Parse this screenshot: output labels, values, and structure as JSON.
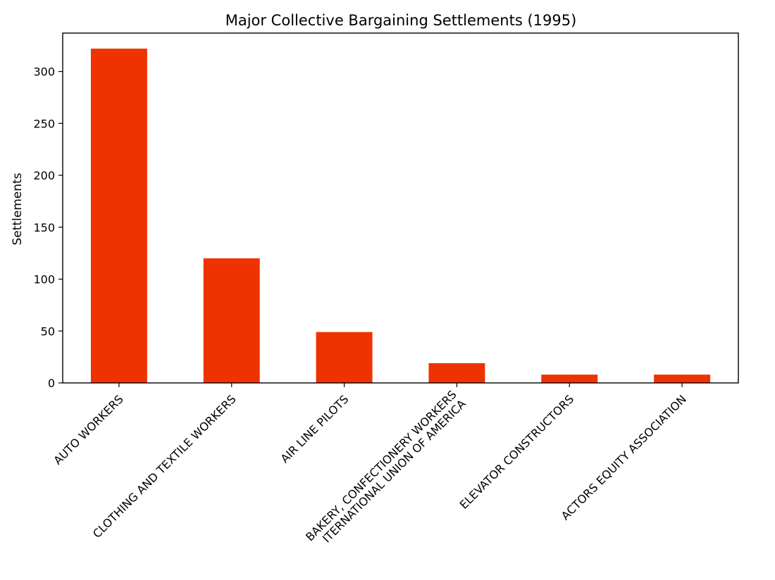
{
  "chart_data": {
    "type": "bar",
    "title": "Major Collective Bargaining Settlements (1995)",
    "xlabel": "",
    "ylabel": "Settlements",
    "categories": [
      "AUTO WORKERS",
      "CLOTHING AND TEXTILE WORKERS",
      "AIR LINE PILOTS",
      "BAKERY, CONFECTIONERY WORKERS\nITERNATIONAL UNION OF AMERICA",
      "ELEVATOR CONSTRUCTORS",
      "ACTORS EQUITY ASSOCIATION"
    ],
    "values": [
      322,
      120,
      49,
      19,
      8,
      8
    ],
    "ylim": [
      0,
      337
    ],
    "yticks": [
      0,
      50,
      100,
      150,
      200,
      250,
      300
    ],
    "grid": false,
    "bar_color": "#ee3300"
  }
}
